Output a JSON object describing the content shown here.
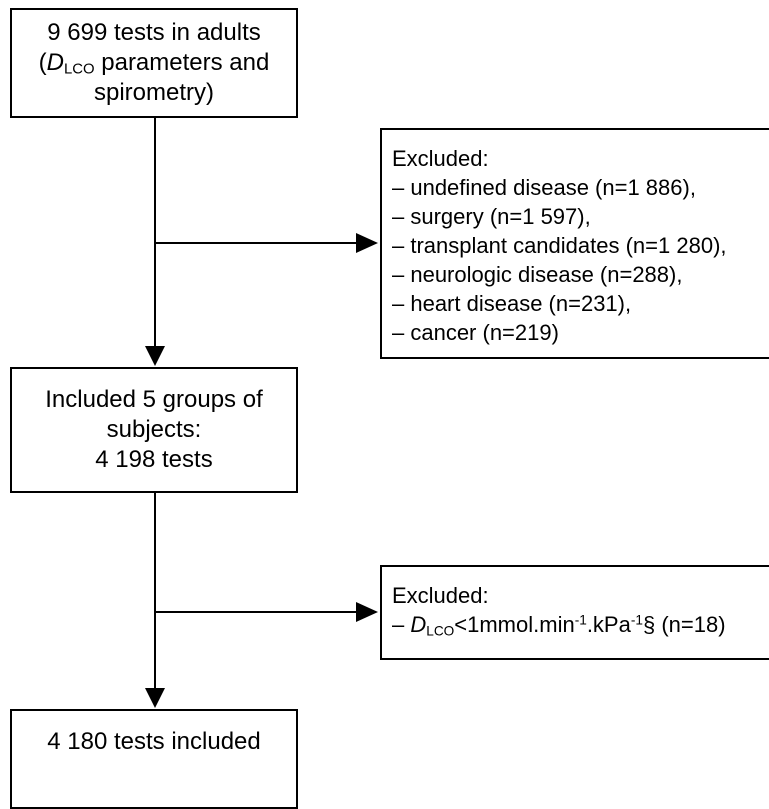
{
  "boxes": {
    "start": {
      "line1": "9 699 tests in adults",
      "line2_open": "(",
      "line2_var": "D",
      "line2_sub": "LCO",
      "line2_rest": " parameters and",
      "line3": "spirometry)"
    },
    "excluded1": {
      "heading": "Excluded:",
      "items": [
        "– undefined disease (n=1 886),",
        "– surgery (n=1 597),",
        "– transplant candidates (n=1 280),",
        "– neurologic disease (n=288),",
        "– heart disease (n=231),",
        "– cancer (n=219)"
      ]
    },
    "included": {
      "line1": "Included 5 groups of",
      "line2": "subjects:",
      "line3": "4 198 tests"
    },
    "excluded2": {
      "heading": "Excluded:",
      "dash": "– ",
      "var": "D",
      "sub": "LCO",
      "text1": "<1mmol.min",
      "sup1": "-1",
      "text2": ".kPa",
      "sup2": "-1",
      "text3": "§ (n=18)"
    },
    "final": {
      "line1": "4 180 tests included"
    }
  }
}
